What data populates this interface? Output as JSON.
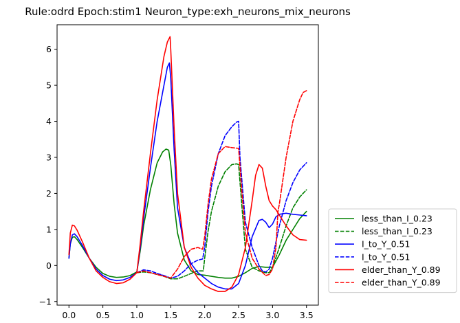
{
  "chart_data": {
    "type": "line",
    "title": "Rule:odrd Epoch:stim1 Neuron_type:exh_neurons_mix_neurons",
    "xlabel": "",
    "ylabel": "",
    "xlim": [
      -0.175,
      3.675
    ],
    "ylim": [
      -1.1,
      6.68
    ],
    "xticks": [
      0.0,
      0.5,
      1.0,
      1.5,
      2.0,
      2.5,
      3.0,
      3.5
    ],
    "yticks": [
      -1,
      0,
      1,
      2,
      3,
      4,
      5,
      6
    ],
    "grid": false,
    "legend_position": "outside-lower-right",
    "series": [
      {
        "name": "less_than_I_0.23",
        "color": "#008000",
        "dash": "solid",
        "points": [
          [
            0.0,
            0.2
          ],
          [
            0.02,
            0.6
          ],
          [
            0.05,
            0.78
          ],
          [
            0.08,
            0.8
          ],
          [
            0.12,
            0.72
          ],
          [
            0.2,
            0.5
          ],
          [
            0.3,
            0.2
          ],
          [
            0.4,
            -0.05
          ],
          [
            0.5,
            -0.22
          ],
          [
            0.6,
            -0.3
          ],
          [
            0.7,
            -0.33
          ],
          [
            0.8,
            -0.32
          ],
          [
            0.9,
            -0.28
          ],
          [
            1.0,
            -0.18
          ],
          [
            1.05,
            0.4
          ],
          [
            1.1,
            1.1
          ],
          [
            1.2,
            2.1
          ],
          [
            1.3,
            2.85
          ],
          [
            1.38,
            3.15
          ],
          [
            1.43,
            3.23
          ],
          [
            1.47,
            3.2
          ],
          [
            1.5,
            2.8
          ],
          [
            1.55,
            1.7
          ],
          [
            1.6,
            0.9
          ],
          [
            1.7,
            0.15
          ],
          [
            1.8,
            -0.15
          ],
          [
            1.9,
            -0.25
          ],
          [
            2.0,
            -0.27
          ],
          [
            2.1,
            -0.3
          ],
          [
            2.2,
            -0.33
          ],
          [
            2.3,
            -0.35
          ],
          [
            2.4,
            -0.35
          ],
          [
            2.5,
            -0.3
          ],
          [
            2.6,
            -0.2
          ],
          [
            2.7,
            -0.08
          ],
          [
            2.8,
            -0.03
          ],
          [
            2.9,
            -0.05
          ],
          [
            3.0,
            -0.05
          ],
          [
            3.1,
            0.3
          ],
          [
            3.2,
            0.7
          ],
          [
            3.3,
            1.0
          ],
          [
            3.4,
            1.3
          ],
          [
            3.5,
            1.5
          ]
        ]
      },
      {
        "name": "less_than_I_0.23",
        "color": "#008000",
        "dash": "dashed",
        "points": [
          [
            1.0,
            -0.2
          ],
          [
            1.1,
            -0.18
          ],
          [
            1.2,
            -0.2
          ],
          [
            1.3,
            -0.25
          ],
          [
            1.4,
            -0.3
          ],
          [
            1.5,
            -0.37
          ],
          [
            1.6,
            -0.37
          ],
          [
            1.7,
            -0.3
          ],
          [
            1.8,
            -0.22
          ],
          [
            1.9,
            -0.15
          ],
          [
            1.98,
            -0.15
          ],
          [
            2.0,
            0.2
          ],
          [
            2.05,
            0.95
          ],
          [
            2.1,
            1.5
          ],
          [
            2.2,
            2.2
          ],
          [
            2.3,
            2.6
          ],
          [
            2.4,
            2.8
          ],
          [
            2.47,
            2.82
          ],
          [
            2.5,
            2.8
          ],
          [
            2.55,
            1.6
          ],
          [
            2.6,
            0.45
          ],
          [
            2.7,
            -0.05
          ],
          [
            2.8,
            -0.15
          ],
          [
            2.9,
            -0.2
          ],
          [
            2.95,
            -0.2
          ],
          [
            3.0,
            -0.05
          ],
          [
            3.1,
            0.5
          ],
          [
            3.2,
            1.1
          ],
          [
            3.3,
            1.6
          ],
          [
            3.4,
            1.9
          ],
          [
            3.5,
            2.1
          ]
        ]
      },
      {
        "name": "I_to_Y_0.51",
        "color": "#0000ff",
        "dash": "solid",
        "points": [
          [
            0.0,
            0.2
          ],
          [
            0.02,
            0.6
          ],
          [
            0.05,
            0.85
          ],
          [
            0.08,
            0.88
          ],
          [
            0.12,
            0.8
          ],
          [
            0.2,
            0.55
          ],
          [
            0.3,
            0.2
          ],
          [
            0.4,
            -0.1
          ],
          [
            0.5,
            -0.28
          ],
          [
            0.6,
            -0.38
          ],
          [
            0.7,
            -0.42
          ],
          [
            0.8,
            -0.4
          ],
          [
            0.9,
            -0.33
          ],
          [
            1.0,
            -0.2
          ],
          [
            1.05,
            0.5
          ],
          [
            1.1,
            1.3
          ],
          [
            1.2,
            2.7
          ],
          [
            1.3,
            4.0
          ],
          [
            1.4,
            5.0
          ],
          [
            1.45,
            5.5
          ],
          [
            1.48,
            5.62
          ],
          [
            1.5,
            5.2
          ],
          [
            1.55,
            3.2
          ],
          [
            1.6,
            1.6
          ],
          [
            1.7,
            0.5
          ],
          [
            1.8,
            0.05
          ],
          [
            1.9,
            -0.2
          ],
          [
            2.0,
            -0.35
          ],
          [
            2.1,
            -0.5
          ],
          [
            2.2,
            -0.6
          ],
          [
            2.3,
            -0.65
          ],
          [
            2.4,
            -0.65
          ],
          [
            2.5,
            -0.5
          ],
          [
            2.6,
            0.0
          ],
          [
            2.7,
            0.8
          ],
          [
            2.8,
            1.25
          ],
          [
            2.85,
            1.28
          ],
          [
            2.9,
            1.2
          ],
          [
            2.95,
            1.05
          ],
          [
            3.0,
            1.15
          ],
          [
            3.05,
            1.35
          ],
          [
            3.1,
            1.42
          ],
          [
            3.2,
            1.45
          ],
          [
            3.3,
            1.42
          ],
          [
            3.4,
            1.4
          ],
          [
            3.5,
            1.38
          ]
        ]
      },
      {
        "name": "I_to_Y_0.51",
        "color": "#0000ff",
        "dash": "dashed",
        "points": [
          [
            1.0,
            -0.2
          ],
          [
            1.1,
            -0.12
          ],
          [
            1.2,
            -0.15
          ],
          [
            1.3,
            -0.22
          ],
          [
            1.4,
            -0.28
          ],
          [
            1.5,
            -0.35
          ],
          [
            1.6,
            -0.3
          ],
          [
            1.7,
            -0.15
          ],
          [
            1.8,
            0.05
          ],
          [
            1.9,
            0.15
          ],
          [
            1.97,
            0.18
          ],
          [
            2.0,
            0.5
          ],
          [
            2.05,
            1.5
          ],
          [
            2.1,
            2.2
          ],
          [
            2.2,
            3.1
          ],
          [
            2.3,
            3.6
          ],
          [
            2.4,
            3.85
          ],
          [
            2.47,
            3.98
          ],
          [
            2.5,
            4.0
          ],
          [
            2.52,
            3.0
          ],
          [
            2.6,
            1.2
          ],
          [
            2.7,
            0.5
          ],
          [
            2.8,
            0.0
          ],
          [
            2.85,
            -0.15
          ],
          [
            2.9,
            -0.18
          ],
          [
            2.95,
            -0.1
          ],
          [
            3.0,
            0.2
          ],
          [
            3.1,
            1.1
          ],
          [
            3.2,
            1.8
          ],
          [
            3.3,
            2.3
          ],
          [
            3.4,
            2.65
          ],
          [
            3.5,
            2.85
          ]
        ]
      },
      {
        "name": "elder_than_Y_0.89",
        "color": "#ff0000",
        "dash": "solid",
        "points": [
          [
            0.0,
            0.3
          ],
          [
            0.02,
            0.9
          ],
          [
            0.05,
            1.12
          ],
          [
            0.08,
            1.1
          ],
          [
            0.12,
            0.98
          ],
          [
            0.2,
            0.65
          ],
          [
            0.3,
            0.2
          ],
          [
            0.4,
            -0.15
          ],
          [
            0.5,
            -0.33
          ],
          [
            0.6,
            -0.45
          ],
          [
            0.7,
            -0.5
          ],
          [
            0.8,
            -0.48
          ],
          [
            0.9,
            -0.38
          ],
          [
            1.0,
            -0.2
          ],
          [
            1.05,
            0.6
          ],
          [
            1.1,
            1.5
          ],
          [
            1.2,
            3.1
          ],
          [
            1.3,
            4.6
          ],
          [
            1.4,
            5.8
          ],
          [
            1.45,
            6.2
          ],
          [
            1.49,
            6.35
          ],
          [
            1.5,
            6.0
          ],
          [
            1.55,
            3.8
          ],
          [
            1.6,
            2.0
          ],
          [
            1.7,
            0.5
          ],
          [
            1.8,
            -0.05
          ],
          [
            1.9,
            -0.35
          ],
          [
            2.0,
            -0.55
          ],
          [
            2.1,
            -0.65
          ],
          [
            2.2,
            -0.72
          ],
          [
            2.3,
            -0.72
          ],
          [
            2.4,
            -0.6
          ],
          [
            2.5,
            -0.25
          ],
          [
            2.6,
            0.5
          ],
          [
            2.7,
            1.8
          ],
          [
            2.75,
            2.5
          ],
          [
            2.8,
            2.8
          ],
          [
            2.85,
            2.7
          ],
          [
            2.9,
            2.2
          ],
          [
            2.95,
            1.8
          ],
          [
            3.0,
            1.65
          ],
          [
            3.05,
            1.55
          ],
          [
            3.1,
            1.4
          ],
          [
            3.2,
            1.1
          ],
          [
            3.3,
            0.85
          ],
          [
            3.4,
            0.72
          ],
          [
            3.5,
            0.7
          ]
        ]
      },
      {
        "name": "elder_than_Y_0.89",
        "color": "#ff0000",
        "dash": "dashed",
        "points": [
          [
            1.0,
            -0.2
          ],
          [
            1.1,
            -0.15
          ],
          [
            1.2,
            -0.2
          ],
          [
            1.3,
            -0.25
          ],
          [
            1.4,
            -0.3
          ],
          [
            1.5,
            -0.35
          ],
          [
            1.6,
            -0.1
          ],
          [
            1.7,
            0.25
          ],
          [
            1.8,
            0.45
          ],
          [
            1.9,
            0.5
          ],
          [
            1.97,
            0.45
          ],
          [
            2.0,
            0.8
          ],
          [
            2.05,
            1.7
          ],
          [
            2.1,
            2.4
          ],
          [
            2.2,
            3.1
          ],
          [
            2.3,
            3.3
          ],
          [
            2.4,
            3.27
          ],
          [
            2.5,
            3.25
          ],
          [
            2.55,
            2.0
          ],
          [
            2.6,
            0.9
          ],
          [
            2.7,
            0.2
          ],
          [
            2.8,
            -0.1
          ],
          [
            2.9,
            -0.28
          ],
          [
            2.95,
            -0.25
          ],
          [
            3.0,
            -0.1
          ],
          [
            3.05,
            0.5
          ],
          [
            3.08,
            1.5
          ],
          [
            3.1,
            1.7
          ],
          [
            3.2,
            3.0
          ],
          [
            3.3,
            4.0
          ],
          [
            3.4,
            4.6
          ],
          [
            3.45,
            4.8
          ],
          [
            3.5,
            4.85
          ]
        ]
      }
    ]
  }
}
